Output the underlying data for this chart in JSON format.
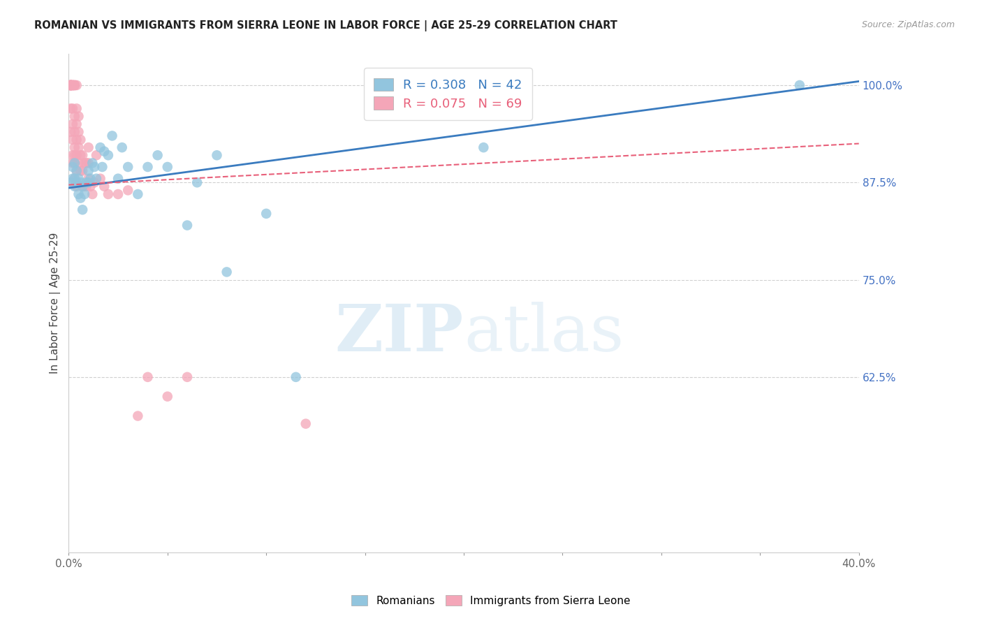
{
  "title": "ROMANIAN VS IMMIGRANTS FROM SIERRA LEONE IN LABOR FORCE | AGE 25-29 CORRELATION CHART",
  "source": "Source: ZipAtlas.com",
  "ylabel": "In Labor Force | Age 25-29",
  "xlim": [
    0.0,
    0.4
  ],
  "ylim": [
    0.4,
    1.04
  ],
  "ytick_positions": [
    0.625,
    0.75,
    0.875,
    1.0
  ],
  "ytick_labels": [
    "62.5%",
    "75.0%",
    "87.5%",
    "100.0%"
  ],
  "blue_color": "#92c5de",
  "pink_color": "#f4a6b8",
  "blue_line_color": "#3a7bbf",
  "pink_line_color": "#e8607a",
  "legend_blue_r": "R = 0.308",
  "legend_blue_n": "N = 42",
  "legend_pink_r": "R = 0.075",
  "legend_pink_n": "N = 69",
  "legend_label_blue": "Romanians",
  "legend_label_pink": "Immigrants from Sierra Leone",
  "watermark_zip": "ZIP",
  "watermark_atlas": "atlas",
  "blue_x": [
    0.001,
    0.002,
    0.002,
    0.003,
    0.003,
    0.003,
    0.004,
    0.004,
    0.005,
    0.005,
    0.006,
    0.006,
    0.007,
    0.007,
    0.008,
    0.009,
    0.01,
    0.01,
    0.011,
    0.012,
    0.013,
    0.014,
    0.016,
    0.017,
    0.018,
    0.02,
    0.022,
    0.025,
    0.027,
    0.03,
    0.035,
    0.04,
    0.045,
    0.05,
    0.06,
    0.065,
    0.075,
    0.08,
    0.1,
    0.115,
    0.21,
    0.37
  ],
  "blue_y": [
    0.875,
    0.88,
    0.895,
    0.87,
    0.88,
    0.9,
    0.875,
    0.89,
    0.86,
    0.88,
    0.855,
    0.875,
    0.84,
    0.87,
    0.86,
    0.875,
    0.89,
    0.875,
    0.88,
    0.9,
    0.895,
    0.88,
    0.92,
    0.895,
    0.915,
    0.91,
    0.935,
    0.88,
    0.92,
    0.895,
    0.86,
    0.895,
    0.91,
    0.895,
    0.82,
    0.875,
    0.91,
    0.76,
    0.835,
    0.625,
    0.92,
    1.0
  ],
  "pink_x": [
    0.001,
    0.001,
    0.001,
    0.001,
    0.001,
    0.001,
    0.001,
    0.001,
    0.001,
    0.001,
    0.001,
    0.001,
    0.002,
    0.002,
    0.002,
    0.002,
    0.002,
    0.002,
    0.002,
    0.002,
    0.002,
    0.002,
    0.003,
    0.003,
    0.003,
    0.003,
    0.003,
    0.003,
    0.003,
    0.003,
    0.003,
    0.004,
    0.004,
    0.004,
    0.004,
    0.004,
    0.004,
    0.004,
    0.005,
    0.005,
    0.005,
    0.005,
    0.006,
    0.006,
    0.006,
    0.007,
    0.007,
    0.007,
    0.008,
    0.008,
    0.009,
    0.009,
    0.01,
    0.01,
    0.01,
    0.011,
    0.012,
    0.013,
    0.014,
    0.016,
    0.018,
    0.02,
    0.025,
    0.03,
    0.035,
    0.04,
    0.05,
    0.06,
    0.12
  ],
  "pink_y": [
    1.0,
    1.0,
    1.0,
    1.0,
    1.0,
    1.0,
    1.0,
    1.0,
    1.0,
    1.0,
    0.97,
    0.94,
    1.0,
    1.0,
    1.0,
    1.0,
    1.0,
    0.97,
    0.95,
    0.93,
    0.91,
    0.9,
    1.0,
    1.0,
    1.0,
    0.96,
    0.94,
    0.92,
    0.91,
    0.9,
    0.88,
    1.0,
    0.97,
    0.95,
    0.93,
    0.91,
    0.89,
    0.87,
    0.96,
    0.94,
    0.92,
    0.9,
    0.93,
    0.91,
    0.89,
    0.91,
    0.89,
    0.87,
    0.9,
    0.87,
    0.9,
    0.87,
    0.92,
    0.9,
    0.88,
    0.87,
    0.86,
    0.875,
    0.91,
    0.88,
    0.87,
    0.86,
    0.86,
    0.865,
    0.575,
    0.625,
    0.6,
    0.625,
    0.565
  ]
}
